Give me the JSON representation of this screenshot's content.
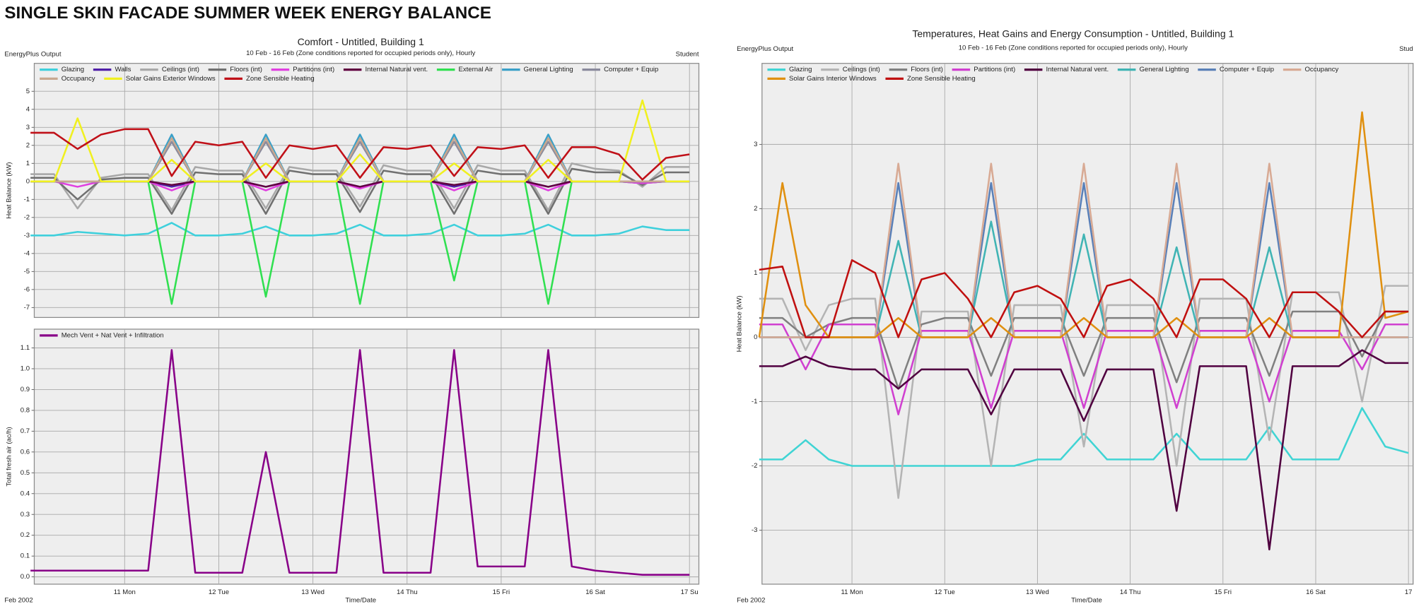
{
  "title": "SINGLE SKIN FACADE SUMMER WEEK ENERGY BALANCE",
  "chart_data": [
    {
      "type": "line",
      "title": "Comfort - Untitled, Building 1",
      "subtitle": "10 Feb - 16 Feb (Zone conditions reported for occupied periods only), Hourly",
      "annotations": [
        "EnergyPlus Output",
        "Student"
      ],
      "ylabel": "Heat Balance (kW)",
      "x": [
        10,
        10.25,
        10.5,
        10.75,
        11,
        11.25,
        11.5,
        11.75,
        12,
        12.25,
        12.5,
        12.75,
        13,
        13.25,
        13.5,
        13.75,
        14,
        14.25,
        14.5,
        14.75,
        15,
        15.25,
        15.5,
        15.75,
        16,
        16.25,
        16.5,
        16.75,
        17
      ],
      "xlim": [
        10.04,
        17.1
      ],
      "xticks": [
        11,
        12,
        13,
        14,
        15,
        16,
        17
      ],
      "ylim": [
        -7.55,
        6.55
      ],
      "yticks": [
        5,
        4,
        3,
        2,
        1,
        0,
        -1,
        -2,
        -3,
        -4,
        -5,
        -6,
        -7
      ],
      "grid": true,
      "series": [
        {
          "name": "Glazing",
          "color": "#3fd0dc",
          "values": [
            -3,
            -3,
            -2.8,
            -2.9,
            -3,
            -2.9,
            -2.3,
            -3,
            -3,
            -2.9,
            -2.5,
            -3,
            -3,
            -2.9,
            -2.4,
            -3,
            -3,
            -2.9,
            -2.4,
            -3,
            -3,
            -2.9,
            -2.4,
            -3,
            -3,
            -2.9,
            -2.5,
            -2.7,
            -2.7
          ]
        },
        {
          "name": "Walls",
          "color": "#5020a8",
          "values": [
            0,
            0,
            0,
            0,
            0,
            0,
            -0.3,
            0,
            0,
            0,
            -0.3,
            0,
            0,
            0,
            -0.3,
            0,
            0,
            0,
            -0.3,
            0,
            0,
            0,
            -0.3,
            0,
            0,
            0,
            -0.1,
            0,
            0
          ]
        },
        {
          "name": "Ceilings (int)",
          "color": "#a8a8a8",
          "values": [
            0.4,
            0.4,
            -1.5,
            0.2,
            0.4,
            0.4,
            -1.6,
            0.8,
            0.6,
            0.6,
            -1.5,
            0.8,
            0.6,
            0.6,
            -1.4,
            0.9,
            0.6,
            0.6,
            -1.5,
            0.9,
            0.6,
            0.6,
            -1.6,
            1.0,
            0.7,
            0.6,
            -0.3,
            0.8,
            0.8
          ]
        },
        {
          "name": "Floors (int)",
          "color": "#707070",
          "values": [
            0.2,
            0.2,
            -1,
            0.1,
            0.2,
            0.2,
            -1.8,
            0.5,
            0.4,
            0.4,
            -1.8,
            0.6,
            0.4,
            0.4,
            -1.7,
            0.6,
            0.4,
            0.4,
            -1.8,
            0.6,
            0.4,
            0.4,
            -1.8,
            0.7,
            0.5,
            0.5,
            -0.2,
            0.5,
            0.5
          ]
        },
        {
          "name": "Partitions (int)",
          "color": "#e040e0",
          "values": [
            0,
            0,
            -0.3,
            0,
            0,
            0,
            -0.5,
            0,
            0,
            0,
            -0.5,
            0,
            0,
            0,
            -0.4,
            0,
            0,
            0,
            -0.5,
            0,
            0,
            0,
            -0.5,
            0,
            0,
            0,
            -0.1,
            0,
            0
          ]
        },
        {
          "name": "Internal Natural vent.",
          "color": "#600040",
          "values": [
            0,
            0,
            0,
            0,
            0,
            0,
            -0.2,
            0,
            0,
            0,
            -0.3,
            0,
            0,
            0,
            -0.3,
            0,
            0,
            0,
            -0.2,
            0,
            0,
            0,
            -0.3,
            0,
            0,
            0,
            0,
            0,
            0
          ]
        },
        {
          "name": "External Air",
          "color": "#30e050",
          "values": [
            0,
            0,
            0,
            0,
            0,
            0,
            -6.8,
            0,
            0,
            0,
            -6.4,
            0,
            0,
            0,
            -6.8,
            0,
            0,
            0,
            -5.5,
            0,
            0,
            0,
            -6.8,
            0,
            0,
            0,
            0,
            0,
            0
          ]
        },
        {
          "name": "General Lighting",
          "color": "#3aa0c8",
          "values": [
            0,
            0,
            0,
            0,
            0,
            0,
            2.6,
            0,
            0,
            0,
            2.6,
            0,
            0,
            0,
            2.6,
            0,
            0,
            0,
            2.6,
            0,
            0,
            0,
            2.6,
            0,
            0,
            0,
            0,
            0,
            0
          ]
        },
        {
          "name": "Computer + Equip",
          "color": "#8a8a9c",
          "values": [
            0,
            0,
            0,
            0,
            0,
            0,
            2.2,
            0,
            0,
            0,
            2.2,
            0,
            0,
            0,
            2.2,
            0,
            0,
            0,
            2.2,
            0,
            0,
            0,
            2.2,
            0,
            0,
            0,
            0,
            0,
            0
          ]
        },
        {
          "name": "Occupancy",
          "color": "#c8a890",
          "values": [
            0,
            0,
            0,
            0,
            0,
            0,
            2.4,
            0,
            0,
            0,
            2.4,
            0,
            0,
            0,
            2.4,
            0,
            0,
            0,
            2.4,
            0,
            0,
            0,
            2.4,
            0,
            0,
            0,
            0,
            0,
            0
          ]
        },
        {
          "name": "Solar Gains Exterior Windows",
          "color": "#f0f020",
          "values": [
            0,
            0,
            3.5,
            0,
            0,
            0,
            1.2,
            0,
            0,
            0,
            1.0,
            0,
            0,
            0,
            1.5,
            0,
            0,
            0,
            1.0,
            0,
            0,
            0,
            1.2,
            0,
            0,
            0,
            4.5,
            0,
            0
          ]
        },
        {
          "name": "Zone Sensible Heating",
          "color": "#c01018",
          "values": [
            2.7,
            2.7,
            1.8,
            2.6,
            2.9,
            2.9,
            0.3,
            2.2,
            2.0,
            2.2,
            0.2,
            2.0,
            1.8,
            2.0,
            0.2,
            1.9,
            1.8,
            2.0,
            0.3,
            1.9,
            1.8,
            2.0,
            0.2,
            1.9,
            1.9,
            1.5,
            0.1,
            1.3,
            1.5
          ]
        }
      ]
    },
    {
      "type": "line",
      "ylabel": "Total fresh air (ac/h)",
      "xlabel": "Time/Date",
      "x_note": "Feb 2002",
      "x": [
        10,
        10.25,
        10.5,
        10.75,
        11,
        11.25,
        11.5,
        11.75,
        12,
        12.25,
        12.5,
        12.75,
        13,
        13.25,
        13.5,
        13.75,
        14,
        14.25,
        14.5,
        14.75,
        15,
        15.25,
        15.5,
        15.75,
        16,
        16.25,
        16.5,
        16.75,
        17
      ],
      "xlim": [
        10.04,
        17.1
      ],
      "xticks": [
        {
          "value": 11,
          "label": "11 Mon"
        },
        {
          "value": 12,
          "label": "12 Tue"
        },
        {
          "value": 13,
          "label": "13 Wed"
        },
        {
          "value": 14,
          "label": "14 Thu"
        },
        {
          "value": 15,
          "label": "15 Fri"
        },
        {
          "value": 16,
          "label": "16 Sat"
        },
        {
          "value": 17,
          "label": "17 Su"
        }
      ],
      "ylim": [
        -0.035,
        1.19
      ],
      "yticks": [
        {
          "value": 0,
          "label": "0.0"
        },
        0.1,
        0.2,
        0.3,
        0.4,
        0.5,
        0.6,
        0.7,
        0.8,
        0.9,
        {
          "value": 1,
          "label": "1.0"
        },
        1.1
      ],
      "grid": true,
      "series": [
        {
          "name": "Mech Vent + Nat Vent + Infiltration",
          "color": "#880088",
          "values": [
            0.03,
            0.03,
            0.03,
            0.03,
            0.03,
            0.03,
            1.09,
            0.02,
            0.02,
            0.02,
            0.6,
            0.02,
            0.02,
            0.02,
            1.09,
            0.02,
            0.02,
            0.02,
            1.09,
            0.05,
            0.05,
            0.05,
            1.09,
            0.05,
            0.03,
            0.02,
            0.01,
            0.01,
            0.01
          ]
        }
      ]
    },
    {
      "type": "line",
      "title": "Temperatures, Heat Gains and Energy Consumption - Untitled, Building 1",
      "subtitle": "10 Feb - 16 Feb (Zone conditions reported for occupied periods only), Hourly",
      "annotations": [
        "EnergyPlus Output",
        "Stud"
      ],
      "ylabel": "Heat Balance (kW)",
      "xlabel": "Time/Date",
      "x_note": "Feb 2002",
      "x": [
        10,
        10.25,
        10.5,
        10.75,
        11,
        11.25,
        11.5,
        11.75,
        12,
        12.25,
        12.5,
        12.75,
        13,
        13.25,
        13.5,
        13.75,
        14,
        14.25,
        14.5,
        14.75,
        15,
        15.25,
        15.5,
        15.75,
        16,
        16.25,
        16.5,
        16.75,
        17
      ],
      "xlim": [
        10.03,
        17.05
      ],
      "xticks": [
        {
          "value": 11,
          "label": "11 Mon"
        },
        {
          "value": 12,
          "label": "12 Tue"
        },
        {
          "value": 13,
          "label": "13 Wed"
        },
        {
          "value": 14,
          "label": "14 Thu"
        },
        {
          "value": 15,
          "label": "15 Fri"
        },
        {
          "value": 16,
          "label": "16 Sat"
        },
        17
      ],
      "ylim": [
        -3.84,
        4.26
      ],
      "yticks": [
        3,
        2,
        1,
        0,
        -1,
        -2,
        -3
      ],
      "grid": true,
      "series": [
        {
          "name": "Glazing",
          "color": "#40d4d4",
          "values": [
            -1.9,
            -1.9,
            -1.6,
            -1.9,
            -2,
            -2,
            -2,
            -2,
            -2,
            -2,
            -2,
            -2,
            -1.9,
            -1.9,
            -1.5,
            -1.9,
            -1.9,
            -1.9,
            -1.5,
            -1.9,
            -1.9,
            -1.9,
            -1.4,
            -1.9,
            -1.9,
            -1.9,
            -1.1,
            -1.7,
            -1.8
          ]
        },
        {
          "name": "Ceilings (int)",
          "color": "#b4b4b4",
          "values": [
            0.6,
            0.6,
            -0.2,
            0.5,
            0.6,
            0.6,
            -2.5,
            0.4,
            0.4,
            0.4,
            -2.0,
            0.5,
            0.5,
            0.5,
            -1.7,
            0.5,
            0.5,
            0.5,
            -2.0,
            0.6,
            0.6,
            0.6,
            -1.6,
            0.7,
            0.7,
            0.7,
            -1.0,
            0.8,
            0.8
          ]
        },
        {
          "name": "Floors (int)",
          "color": "#808080",
          "values": [
            0.3,
            0.3,
            0,
            0.2,
            0.3,
            0.3,
            -0.8,
            0.2,
            0.3,
            0.3,
            -0.6,
            0.3,
            0.3,
            0.3,
            -0.6,
            0.3,
            0.3,
            0.3,
            -0.7,
            0.3,
            0.3,
            0.3,
            -0.6,
            0.4,
            0.4,
            0.4,
            -0.3,
            0.4,
            0.4
          ]
        },
        {
          "name": "Partitions (int)",
          "color": "#d040d0",
          "values": [
            0.2,
            0.2,
            -0.5,
            0.2,
            0.2,
            0.2,
            -1.2,
            0.1,
            0.1,
            0.1,
            -1.1,
            0.1,
            0.1,
            0.1,
            -1.1,
            0.1,
            0.1,
            0.1,
            -1.1,
            0.1,
            0.1,
            0.1,
            -1.0,
            0.1,
            0.1,
            0.1,
            -0.5,
            0.2,
            0.2
          ]
        },
        {
          "name": "Internal Natural vent.",
          "color": "#500040",
          "values": [
            -0.45,
            -0.45,
            -0.3,
            -0.45,
            -0.5,
            -0.5,
            -0.8,
            -0.5,
            -0.5,
            -0.5,
            -1.2,
            -0.5,
            -0.5,
            -0.5,
            -1.3,
            -0.5,
            -0.5,
            -0.5,
            -2.7,
            -0.45,
            -0.45,
            -0.45,
            -3.3,
            -0.45,
            -0.45,
            -0.45,
            -0.2,
            -0.4,
            -0.4
          ]
        },
        {
          "name": "General Lighting",
          "color": "#40b4b4",
          "values": [
            0,
            0,
            0,
            0,
            0,
            0,
            1.5,
            0,
            0,
            0,
            1.8,
            0,
            0,
            0,
            1.6,
            0,
            0,
            0,
            1.4,
            0,
            0,
            0,
            1.4,
            0,
            0,
            0,
            0,
            0,
            0
          ]
        },
        {
          "name": "Computer + Equip",
          "color": "#5a80b8",
          "values": [
            0,
            0,
            0,
            0,
            0,
            0,
            2.4,
            0,
            0,
            0,
            2.4,
            0,
            0,
            0,
            2.4,
            0,
            0,
            0,
            2.4,
            0,
            0,
            0,
            2.4,
            0,
            0,
            0,
            0,
            0,
            0
          ]
        },
        {
          "name": "Occupancy",
          "color": "#d8aa94",
          "values": [
            0,
            0,
            0,
            0,
            0,
            0,
            2.7,
            0,
            0,
            0,
            2.7,
            0,
            0,
            0,
            2.7,
            0,
            0,
            0,
            2.7,
            0,
            0,
            0,
            2.7,
            0,
            0,
            0,
            0,
            0,
            0
          ]
        },
        {
          "name": "Solar Gains Interior Windows",
          "color": "#e09010",
          "values": [
            0,
            2.4,
            0.5,
            0,
            0,
            0,
            0.3,
            0,
            0,
            0,
            0.3,
            0,
            0,
            0,
            0.3,
            0,
            0,
            0,
            0.3,
            0,
            0,
            0,
            0.3,
            0,
            0,
            0,
            3.5,
            0.3,
            0.4
          ]
        },
        {
          "name": "Zone Sensible Heating",
          "color": "#c01010",
          "values": [
            1.05,
            1.1,
            0,
            0,
            1.2,
            1.0,
            0,
            0.9,
            1.0,
            0.6,
            0,
            0.7,
            0.8,
            0.6,
            0,
            0.8,
            0.9,
            0.6,
            0,
            0.9,
            0.9,
            0.6,
            0,
            0.7,
            0.7,
            0.4,
            0,
            0.4,
            0.4
          ]
        }
      ]
    }
  ]
}
